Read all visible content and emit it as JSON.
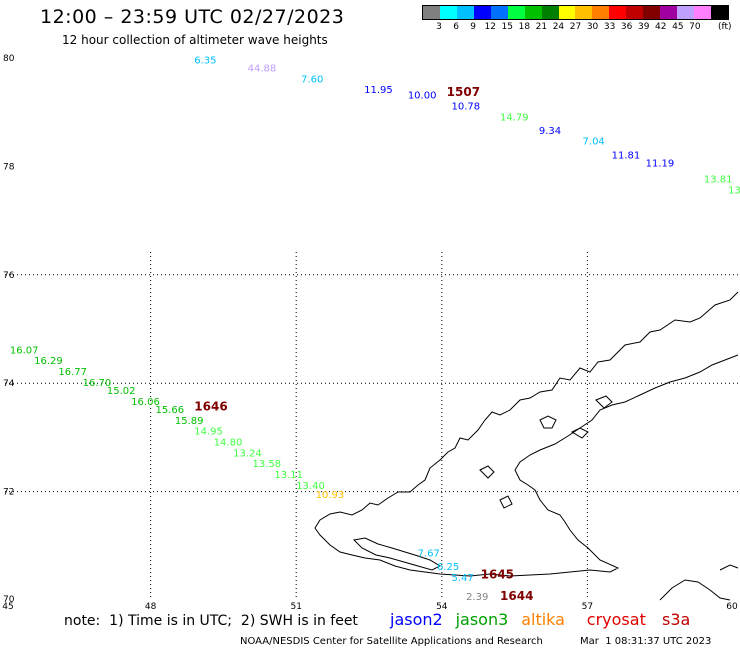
{
  "header": {
    "title": "12:00 – 23:59 UTC 02/27/2023",
    "subtitle": "12 hour collection of altimeter wave heights"
  },
  "legend": {
    "unit": "(ft)",
    "colors": [
      "#808080",
      "#00ffff",
      "#00c0ff",
      "#0000ff",
      "#0070ff",
      "#00ff40",
      "#00c000",
      "#008000",
      "#ffff00",
      "#ffc000",
      "#ff8000",
      "#ff0000",
      "#c00000",
      "#800000",
      "#a000a0",
      "#c0a0ff",
      "#ff80ff",
      "#000000"
    ],
    "labels": [
      "3",
      "6",
      "9",
      "12",
      "15",
      "18",
      "21",
      "24",
      "27",
      "30",
      "33",
      "36",
      "39",
      "42",
      "45",
      "70"
    ]
  },
  "axes": {
    "lon_ticks": [
      "45",
      "48",
      "51",
      "54",
      "57",
      "60"
    ],
    "lat_ticks": [
      "80",
      "78",
      "76",
      "74",
      "72",
      "70"
    ]
  },
  "pass_labels": [
    {
      "text": "1507",
      "lon": 54.1,
      "lat": 79.3,
      "color": "#800000"
    },
    {
      "text": "1646",
      "lon": 48.9,
      "lat": 73.5,
      "color": "#800000"
    },
    {
      "text": "1645",
      "lon": 54.8,
      "lat": 70.4,
      "color": "#800000"
    },
    {
      "text": "1644",
      "lon": 55.2,
      "lat": 70.0,
      "color": "#800000"
    }
  ],
  "wave_heights": [
    {
      "text": "6.35",
      "lon": 48.9,
      "lat": 79.9,
      "color": "#00c0ff"
    },
    {
      "text": "44.88",
      "lon": 50.0,
      "lat": 79.75,
      "color": "#c0a0ff"
    },
    {
      "text": "7.60",
      "lon": 51.1,
      "lat": 79.55,
      "color": "#00c0ff"
    },
    {
      "text": "11.95",
      "lon": 52.4,
      "lat": 79.35,
      "color": "#0000ff"
    },
    {
      "text": "10.00",
      "lon": 53.3,
      "lat": 79.25,
      "color": "#0000ff"
    },
    {
      "text": "10.78",
      "lon": 54.2,
      "lat": 79.05,
      "color": "#0000ff"
    },
    {
      "text": "14.79",
      "lon": 55.2,
      "lat": 78.85,
      "color": "#40ff40"
    },
    {
      "text": "9.34",
      "lon": 56.0,
      "lat": 78.6,
      "color": "#0000ff"
    },
    {
      "text": "7.04",
      "lon": 56.9,
      "lat": 78.4,
      "color": "#00c0ff"
    },
    {
      "text": "11.81",
      "lon": 57.5,
      "lat": 78.15,
      "color": "#0000ff"
    },
    {
      "text": "11.19",
      "lon": 58.2,
      "lat": 78.0,
      "color": "#0000ff"
    },
    {
      "text": "13.81",
      "lon": 59.4,
      "lat": 77.7,
      "color": "#40ff40"
    },
    {
      "text": "13",
      "lon": 59.9,
      "lat": 77.5,
      "color": "#40ff40"
    },
    {
      "text": "16.07",
      "lon": 45.1,
      "lat": 74.55,
      "color": "#00c000"
    },
    {
      "text": "16.29",
      "lon": 45.6,
      "lat": 74.35,
      "color": "#00c000"
    },
    {
      "text": "16.77",
      "lon": 46.1,
      "lat": 74.15,
      "color": "#00c000"
    },
    {
      "text": "16.70",
      "lon": 46.6,
      "lat": 73.95,
      "color": "#00c000"
    },
    {
      "text": "15.02",
      "lon": 47.1,
      "lat": 73.8,
      "color": "#00c000"
    },
    {
      "text": "16.06",
      "lon": 47.6,
      "lat": 73.6,
      "color": "#00c000"
    },
    {
      "text": "15.66",
      "lon": 48.1,
      "lat": 73.45,
      "color": "#00c000"
    },
    {
      "text": "15.89",
      "lon": 48.5,
      "lat": 73.25,
      "color": "#00c000"
    },
    {
      "text": "14.95",
      "lon": 48.9,
      "lat": 73.05,
      "color": "#40ff40"
    },
    {
      "text": "14.80",
      "lon": 49.3,
      "lat": 72.85,
      "color": "#40ff40"
    },
    {
      "text": "13.24",
      "lon": 49.7,
      "lat": 72.65,
      "color": "#40ff40"
    },
    {
      "text": "13.58",
      "lon": 50.1,
      "lat": 72.45,
      "color": "#40ff40"
    },
    {
      "text": "13.11",
      "lon": 50.55,
      "lat": 72.25,
      "color": "#40ff40"
    },
    {
      "text": "13.40",
      "lon": 51.0,
      "lat": 72.05,
      "color": "#40ff40"
    },
    {
      "text": "10.93",
      "lon": 51.4,
      "lat": 71.88,
      "color": "#ffc000"
    },
    {
      "text": "7.67",
      "lon": 53.5,
      "lat": 70.8,
      "color": "#00c0ff"
    },
    {
      "text": "6.25",
      "lon": 53.9,
      "lat": 70.55,
      "color": "#00c0ff"
    },
    {
      "text": "5.47",
      "lon": 54.2,
      "lat": 70.35,
      "color": "#00c0ff"
    },
    {
      "text": "2.39",
      "lon": 54.5,
      "lat": 70.0,
      "color": "#808080"
    }
  ],
  "footer": {
    "note": "note:  1) Time is in UTC;  2) SWH is in feet",
    "satellites": [
      {
        "name": "jason2",
        "color": "#0000ff"
      },
      {
        "name": "jason3",
        "color": "#00a000"
      },
      {
        "name": "altika",
        "color": "#ff8000"
      },
      {
        "name": "cryosat",
        "color": "#e00000"
      },
      {
        "name": "s3a",
        "color": "#c00000"
      }
    ],
    "credit": "NOAA/NESDIS Center for Satellite Applications and Research",
    "timestamp": "Mar  1 08:31:37 UTC 2023"
  }
}
